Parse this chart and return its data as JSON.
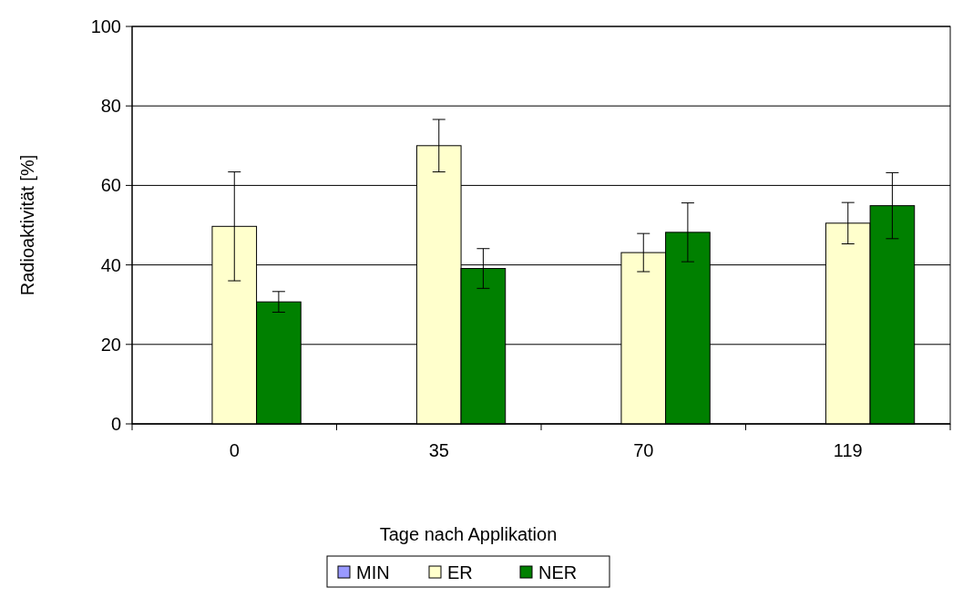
{
  "chart_data": {
    "type": "bar",
    "xlabel": "Tage nach Applikation",
    "ylabel": "Radioaktivität [%]",
    "categories": [
      "0",
      "35",
      "70",
      "119"
    ],
    "series": [
      {
        "name": "MIN",
        "color": "#9999ff",
        "values": [
          null,
          null,
          null,
          null
        ]
      },
      {
        "name": "ER",
        "color": "#ffffcc",
        "values": [
          49.7,
          70,
          43.1,
          50.5
        ],
        "errors": [
          13.7,
          6.6,
          4.8,
          5.2
        ]
      },
      {
        "name": "NER",
        "color": "#008000",
        "values": [
          30.7,
          39.1,
          48.2,
          54.9
        ],
        "errors": [
          2.6,
          5,
          7.4,
          8.3
        ]
      }
    ],
    "ylim": [
      0,
      100
    ],
    "yticks": [
      0,
      20,
      40,
      60,
      80,
      100
    ],
    "grid": "y",
    "legend": "bottom"
  }
}
